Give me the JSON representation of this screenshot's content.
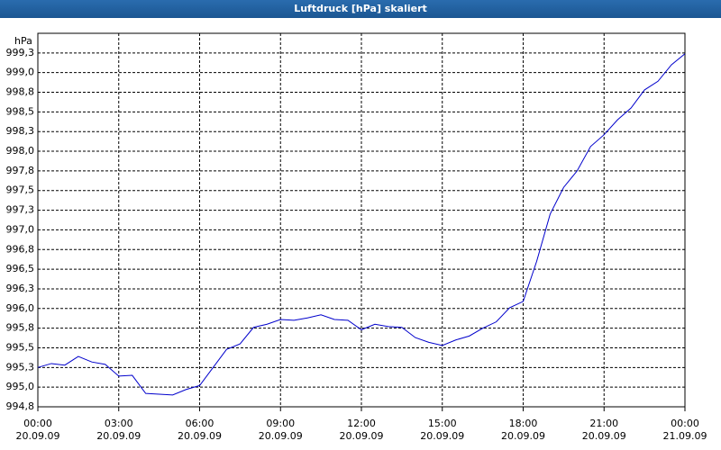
{
  "chart_data": {
    "type": "line",
    "title": "Luftdruck [hPa] skaliert",
    "ylabel": "hPa",
    "grid": true,
    "xlim": [
      0,
      24
    ],
    "xticks": [
      {
        "value": 0,
        "label": "00:00\n20.09.09"
      },
      {
        "value": 3,
        "label": "03:00\n20.09.09"
      },
      {
        "value": 6,
        "label": "06:00\n20.09.09"
      },
      {
        "value": 9,
        "label": "09:00\n20.09.09"
      },
      {
        "value": 12,
        "label": "12:00\n20.09.09"
      },
      {
        "value": 15,
        "label": "15:00\n20.09.09"
      },
      {
        "value": 18,
        "label": "18:00\n20.09.09"
      },
      {
        "value": 21,
        "label": "21:00\n20.09.09"
      },
      {
        "value": 24,
        "label": "00:00\n21.09.09"
      }
    ],
    "ylim": [
      994.75,
      999.5
    ],
    "yticks": [
      {
        "value": 994.75,
        "label": "994,8"
      },
      {
        "value": 995.0,
        "label": "995,0"
      },
      {
        "value": 995.25,
        "label": "995,3"
      },
      {
        "value": 995.5,
        "label": "995,5"
      },
      {
        "value": 995.75,
        "label": "995,8"
      },
      {
        "value": 996.0,
        "label": "996,0"
      },
      {
        "value": 996.25,
        "label": "996,3"
      },
      {
        "value": 996.5,
        "label": "996,5"
      },
      {
        "value": 996.75,
        "label": "996,8"
      },
      {
        "value": 997.0,
        "label": "997,0"
      },
      {
        "value": 997.25,
        "label": "997,3"
      },
      {
        "value": 997.5,
        "label": "997,5"
      },
      {
        "value": 997.75,
        "label": "997,8"
      },
      {
        "value": 998.0,
        "label": "998,0"
      },
      {
        "value": 998.25,
        "label": "998,3"
      },
      {
        "value": 998.5,
        "label": "998,5"
      },
      {
        "value": 998.75,
        "label": "998,8"
      },
      {
        "value": 999.0,
        "label": "999,0"
      },
      {
        "value": 999.25,
        "label": "999,3"
      }
    ],
    "x": [
      0,
      0.5,
      1,
      1.5,
      2,
      2.5,
      3,
      3.5,
      4,
      4.5,
      5,
      5.5,
      6,
      6.5,
      7,
      7.5,
      8,
      8.5,
      9,
      9.5,
      10,
      10.5,
      11,
      11.5,
      12,
      12.5,
      13,
      13.5,
      14,
      14.5,
      15,
      15.5,
      16,
      16.5,
      17,
      17.5,
      18,
      18.5,
      19,
      19.5,
      20,
      20.5,
      21,
      21.5,
      22,
      22.5,
      23,
      23.5,
      24
    ],
    "series": [
      {
        "name": "Luftdruck",
        "color": "#0000cc",
        "values": [
          995.25,
          995.3,
          995.28,
          995.39,
          995.32,
          995.29,
          995.14,
          995.15,
          994.92,
          994.91,
          994.9,
          994.97,
          995.02,
          995.25,
          995.48,
          995.55,
          995.76,
          995.8,
          995.86,
          995.85,
          995.88,
          995.92,
          995.86,
          995.85,
          995.73,
          995.8,
          995.77,
          995.76,
          995.63,
          995.57,
          995.53,
          995.6,
          995.65,
          995.75,
          995.83,
          996.01,
          996.09,
          996.6,
          997.2,
          997.54,
          997.75,
          998.06,
          998.21,
          998.4,
          998.55,
          998.78,
          998.89,
          999.1,
          999.24
        ]
      }
    ]
  }
}
